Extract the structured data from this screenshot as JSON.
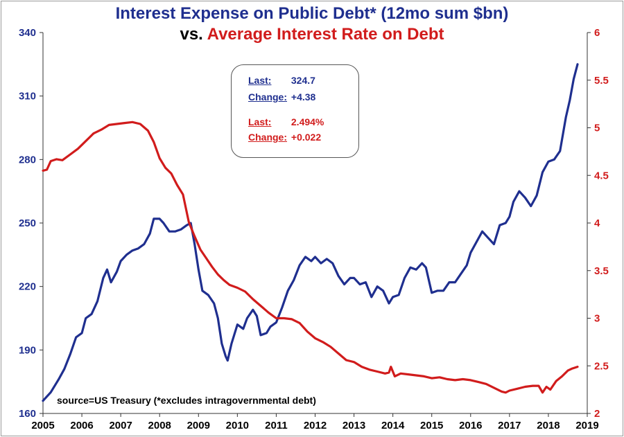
{
  "chart_data": {
    "type": "line",
    "title_line1": "Interest Expense on Public Debt* (12mo sum $bn)",
    "title_line2_prefix": "vs.",
    "title_line2_red": "Average Interest Rate on Debt",
    "x_ticks": [
      "2005",
      "2006",
      "2007",
      "2008",
      "2009",
      "2010",
      "2011",
      "2012",
      "2013",
      "2014",
      "2015",
      "2016",
      "2017",
      "2018",
      "2019"
    ],
    "xlim": [
      2005,
      2019
    ],
    "y_left_ticks": [
      "340",
      "310",
      "280",
      "250",
      "220",
      "190",
      "160"
    ],
    "ylim_left": [
      160,
      340
    ],
    "y_right_ticks": [
      "6",
      "5.5",
      "5",
      "4.5",
      "4",
      "3.5",
      "3",
      "2.5",
      "2"
    ],
    "ylim_right": [
      2,
      6
    ],
    "colors": {
      "interest_expense": "#1f2f8f",
      "interest_rate": "#d11c1c"
    },
    "series": [
      {
        "key": "interest_expense",
        "axis": "left",
        "points": [
          [
            2005.0,
            166
          ],
          [
            2005.2,
            170
          ],
          [
            2005.4,
            176
          ],
          [
            2005.55,
            181
          ],
          [
            2005.7,
            188
          ],
          [
            2005.85,
            196
          ],
          [
            2006.0,
            198
          ],
          [
            2006.1,
            205
          ],
          [
            2006.25,
            207
          ],
          [
            2006.4,
            213
          ],
          [
            2006.55,
            224
          ],
          [
            2006.65,
            228
          ],
          [
            2006.75,
            222
          ],
          [
            2006.9,
            227
          ],
          [
            2007.0,
            232
          ],
          [
            2007.15,
            235
          ],
          [
            2007.3,
            237
          ],
          [
            2007.45,
            238
          ],
          [
            2007.6,
            240
          ],
          [
            2007.75,
            245
          ],
          [
            2007.85,
            252
          ],
          [
            2008.0,
            252
          ],
          [
            2008.1,
            250
          ],
          [
            2008.25,
            246
          ],
          [
            2008.4,
            246
          ],
          [
            2008.55,
            247
          ],
          [
            2008.7,
            249
          ],
          [
            2008.8,
            250
          ],
          [
            2008.9,
            240
          ],
          [
            2009.0,
            228
          ],
          [
            2009.1,
            218
          ],
          [
            2009.25,
            216
          ],
          [
            2009.4,
            212
          ],
          [
            2009.5,
            205
          ],
          [
            2009.6,
            193
          ],
          [
            2009.7,
            187
          ],
          [
            2009.75,
            185
          ],
          [
            2009.85,
            193
          ],
          [
            2010.0,
            202
          ],
          [
            2010.15,
            200
          ],
          [
            2010.25,
            205
          ],
          [
            2010.4,
            209
          ],
          [
            2010.5,
            206
          ],
          [
            2010.6,
            197
          ],
          [
            2010.75,
            198
          ],
          [
            2010.85,
            201
          ],
          [
            2011.0,
            203
          ],
          [
            2011.15,
            210
          ],
          [
            2011.3,
            218
          ],
          [
            2011.45,
            223
          ],
          [
            2011.6,
            230
          ],
          [
            2011.75,
            234
          ],
          [
            2011.9,
            232
          ],
          [
            2012.0,
            234
          ],
          [
            2012.15,
            231
          ],
          [
            2012.3,
            233
          ],
          [
            2012.45,
            231
          ],
          [
            2012.6,
            225
          ],
          [
            2012.75,
            221
          ],
          [
            2012.9,
            224
          ],
          [
            2013.0,
            224
          ],
          [
            2013.15,
            221
          ],
          [
            2013.3,
            222
          ],
          [
            2013.45,
            215
          ],
          [
            2013.6,
            220
          ],
          [
            2013.75,
            218
          ],
          [
            2013.9,
            212
          ],
          [
            2014.0,
            215
          ],
          [
            2014.15,
            216
          ],
          [
            2014.3,
            224
          ],
          [
            2014.45,
            229
          ],
          [
            2014.6,
            228
          ],
          [
            2014.75,
            231
          ],
          [
            2014.85,
            229
          ],
          [
            2015.0,
            217
          ],
          [
            2015.15,
            218
          ],
          [
            2015.3,
            218
          ],
          [
            2015.45,
            222
          ],
          [
            2015.6,
            222
          ],
          [
            2015.75,
            226
          ],
          [
            2015.9,
            230
          ],
          [
            2016.0,
            236
          ],
          [
            2016.15,
            241
          ],
          [
            2016.3,
            246
          ],
          [
            2016.45,
            243
          ],
          [
            2016.6,
            240
          ],
          [
            2016.75,
            249
          ],
          [
            2016.9,
            250
          ],
          [
            2017.0,
            253
          ],
          [
            2017.1,
            260
          ],
          [
            2017.25,
            265
          ],
          [
            2017.4,
            262
          ],
          [
            2017.55,
            258
          ],
          [
            2017.7,
            263
          ],
          [
            2017.85,
            274
          ],
          [
            2018.0,
            279
          ],
          [
            2018.15,
            280
          ],
          [
            2018.3,
            284
          ],
          [
            2018.45,
            300
          ],
          [
            2018.55,
            308
          ],
          [
            2018.65,
            318
          ],
          [
            2018.75,
            325
          ]
        ]
      },
      {
        "key": "interest_rate",
        "axis": "right",
        "points": [
          [
            2005.0,
            4.55
          ],
          [
            2005.1,
            4.56
          ],
          [
            2005.2,
            4.65
          ],
          [
            2005.35,
            4.67
          ],
          [
            2005.5,
            4.66
          ],
          [
            2005.7,
            4.72
          ],
          [
            2005.9,
            4.78
          ],
          [
            2006.1,
            4.86
          ],
          [
            2006.3,
            4.94
          ],
          [
            2006.5,
            4.98
          ],
          [
            2006.7,
            5.03
          ],
          [
            2006.9,
            5.04
          ],
          [
            2007.1,
            5.05
          ],
          [
            2007.3,
            5.06
          ],
          [
            2007.5,
            5.04
          ],
          [
            2007.7,
            4.97
          ],
          [
            2007.85,
            4.85
          ],
          [
            2008.0,
            4.68
          ],
          [
            2008.15,
            4.58
          ],
          [
            2008.3,
            4.52
          ],
          [
            2008.45,
            4.4
          ],
          [
            2008.6,
            4.3
          ],
          [
            2008.75,
            4.01
          ],
          [
            2008.9,
            3.86
          ],
          [
            2009.05,
            3.72
          ],
          [
            2009.2,
            3.63
          ],
          [
            2009.35,
            3.54
          ],
          [
            2009.5,
            3.46
          ],
          [
            2009.65,
            3.4
          ],
          [
            2009.8,
            3.35
          ],
          [
            2010.0,
            3.32
          ],
          [
            2010.2,
            3.28
          ],
          [
            2010.4,
            3.2
          ],
          [
            2010.6,
            3.13
          ],
          [
            2010.8,
            3.06
          ],
          [
            2011.0,
            3.0
          ],
          [
            2011.2,
            3.0
          ],
          [
            2011.4,
            2.99
          ],
          [
            2011.6,
            2.95
          ],
          [
            2011.8,
            2.86
          ],
          [
            2012.0,
            2.79
          ],
          [
            2012.2,
            2.75
          ],
          [
            2012.4,
            2.7
          ],
          [
            2012.6,
            2.63
          ],
          [
            2012.8,
            2.56
          ],
          [
            2013.0,
            2.54
          ],
          [
            2013.2,
            2.49
          ],
          [
            2013.4,
            2.46
          ],
          [
            2013.6,
            2.44
          ],
          [
            2013.8,
            2.42
          ],
          [
            2013.9,
            2.43
          ],
          [
            2013.95,
            2.49
          ],
          [
            2014.05,
            2.39
          ],
          [
            2014.2,
            2.42
          ],
          [
            2014.4,
            2.41
          ],
          [
            2014.6,
            2.4
          ],
          [
            2014.8,
            2.39
          ],
          [
            2015.0,
            2.37
          ],
          [
            2015.2,
            2.38
          ],
          [
            2015.4,
            2.36
          ],
          [
            2015.6,
            2.35
          ],
          [
            2015.8,
            2.36
          ],
          [
            2016.0,
            2.35
          ],
          [
            2016.2,
            2.33
          ],
          [
            2016.4,
            2.31
          ],
          [
            2016.6,
            2.27
          ],
          [
            2016.8,
            2.23
          ],
          [
            2016.9,
            2.22
          ],
          [
            2017.0,
            2.24
          ],
          [
            2017.2,
            2.26
          ],
          [
            2017.4,
            2.28
          ],
          [
            2017.6,
            2.29
          ],
          [
            2017.75,
            2.29
          ],
          [
            2017.85,
            2.22
          ],
          [
            2017.95,
            2.28
          ],
          [
            2018.05,
            2.25
          ],
          [
            2018.2,
            2.34
          ],
          [
            2018.35,
            2.39
          ],
          [
            2018.5,
            2.45
          ],
          [
            2018.6,
            2.47
          ],
          [
            2018.75,
            2.49
          ]
        ]
      }
    ]
  },
  "info_box": {
    "blue_last_label": "Last:",
    "blue_last_value": "324.7",
    "blue_change_label": "Change:",
    "blue_change_value": "+4.38",
    "red_last_label": "Last:",
    "red_last_value": "2.494%",
    "red_change_label": "Change:",
    "red_change_value": "+0.022"
  },
  "source_note": "source=US Treasury (*excludes intragovernmental debt)"
}
